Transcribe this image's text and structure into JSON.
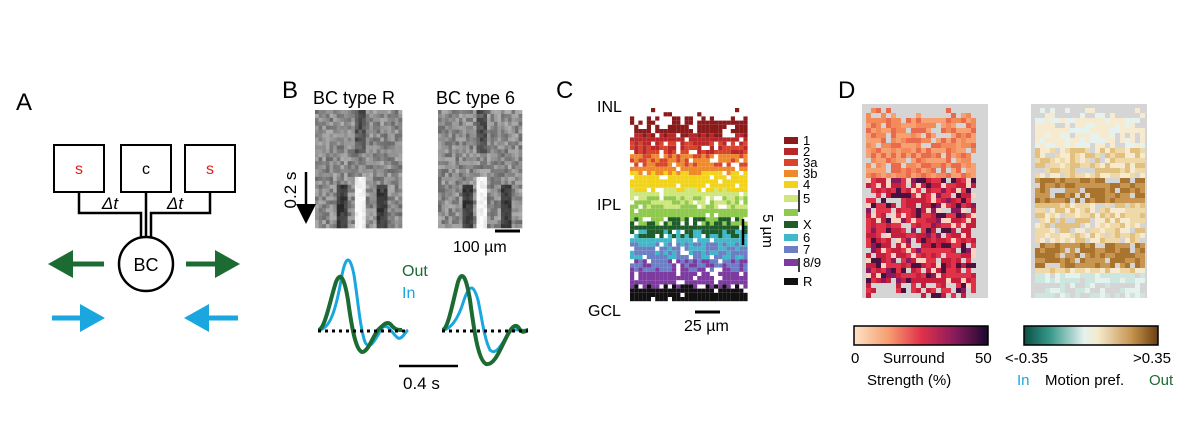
{
  "panels": {
    "A": {
      "letter": "A",
      "surround_left": "s",
      "center": "c",
      "surround_right": "s",
      "delay_left": "Δt",
      "delay_right": "Δt",
      "cell": "BC",
      "colors": {
        "out_arrow": "#1c6b33",
        "in_arrow": "#1aa7e0",
        "surround_text": "#e0201b"
      }
    },
    "B": {
      "letter": "B",
      "title_left": "BC type R",
      "title_right": "BC type 6",
      "time_scale": "0.2 s",
      "space_scale": "100 µm",
      "legend_out": "Out",
      "legend_in": "In",
      "trace_scale": "0.4 s",
      "colors": {
        "out": "#1c6b33",
        "in": "#1aa7e0"
      }
    },
    "C": {
      "letter": "C",
      "layer_top": "INL",
      "layer_mid": "IPL",
      "layer_bottom": "GCL",
      "depth_scale": "5 µm",
      "width_scale": "25 µm",
      "types": [
        {
          "label": "1",
          "color": "#8b1a1a"
        },
        {
          "label": "2",
          "color": "#b8282b"
        },
        {
          "label": "3a",
          "color": "#d8452c"
        },
        {
          "label": "3b",
          "color": "#ef8a2b"
        },
        {
          "label": "4",
          "color": "#f2d31b"
        },
        {
          "label": "5",
          "color": "#cfe67a"
        },
        {
          "label": "",
          "color": "#8fc94e"
        },
        {
          "label": "X",
          "color": "#1f5c2c"
        },
        {
          "label": "6",
          "color": "#3fb8c9"
        },
        {
          "label": "7",
          "color": "#6d7fc4"
        },
        {
          "label": "8/9",
          "color": "#7d3aa0"
        },
        {
          "label": "R",
          "color": "#111111"
        }
      ]
    },
    "D": {
      "letter": "D",
      "colorbar_left": {
        "min": "0",
        "max": "50",
        "label_line1": "Surround",
        "label_line2": "Strength (%)"
      },
      "colorbar_right": {
        "min": "<-0.35",
        "max": ">0.35",
        "in": "In",
        "label": "Motion pref.",
        "out": "Out"
      },
      "colors": {
        "in": "#1aa7e0",
        "out": "#1c6b33"
      }
    }
  }
}
